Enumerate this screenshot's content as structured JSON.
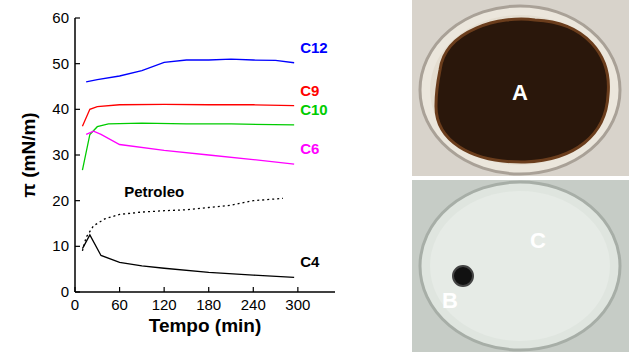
{
  "chart_data": {
    "type": "line",
    "x_label": "Tempo (min)",
    "y_label": "π (mN/m)",
    "xlim": [
      0,
      350
    ],
    "xticks": [
      0,
      60,
      120,
      180,
      240,
      300
    ],
    "ylim": [
      0,
      60
    ],
    "yticks": [
      0,
      10,
      20,
      30,
      40,
      50,
      60
    ],
    "grid": false,
    "series": [
      {
        "name": "C12",
        "color": "#0000ff",
        "line_style": "solid",
        "x": [
          15,
          30,
          60,
          90,
          120,
          150,
          180,
          210,
          240,
          270,
          295
        ],
        "values": [
          46,
          46.5,
          47.3,
          48.5,
          50.3,
          50.8,
          50.8,
          51,
          50.8,
          50.7,
          50.2
        ]
      },
      {
        "name": "C9",
        "color": "#ff0000",
        "line_style": "solid",
        "x": [
          10,
          20,
          30,
          60,
          120,
          180,
          240,
          295
        ],
        "values": [
          36.3,
          40,
          40.6,
          41,
          41.1,
          41,
          41,
          40.8
        ]
      },
      {
        "name": "C10",
        "color": "#00cc00",
        "line_style": "solid",
        "x": [
          10,
          20,
          30,
          45,
          90,
          150,
          210,
          295
        ],
        "values": [
          26.7,
          34.5,
          36.2,
          36.8,
          37,
          36.8,
          36.8,
          36.6
        ]
      },
      {
        "name": "C6",
        "color": "#ff00ff",
        "line_style": "solid",
        "x": [
          15,
          25,
          35,
          60,
          120,
          180,
          240,
          295
        ],
        "values": [
          34.5,
          35.2,
          34.5,
          32.3,
          31,
          30,
          29,
          28
        ]
      },
      {
        "name": "Petroleo",
        "color": "#000000",
        "line_style": "dotted",
        "x": [
          10,
          15,
          25,
          40,
          60,
          90,
          120,
          150,
          180,
          210,
          240,
          280
        ],
        "values": [
          9,
          12,
          14.5,
          16,
          17,
          17.5,
          17.8,
          18,
          18.5,
          19,
          20,
          20.5
        ]
      },
      {
        "name": "C4",
        "color": "#000000",
        "line_style": "solid",
        "x": [
          10,
          20,
          35,
          60,
          90,
          120,
          180,
          240,
          295
        ],
        "values": [
          9.5,
          12.5,
          8,
          6.5,
          5.7,
          5.2,
          4.3,
          3.7,
          3.2
        ]
      }
    ],
    "annotations": [
      "A",
      "B",
      "C"
    ]
  }
}
